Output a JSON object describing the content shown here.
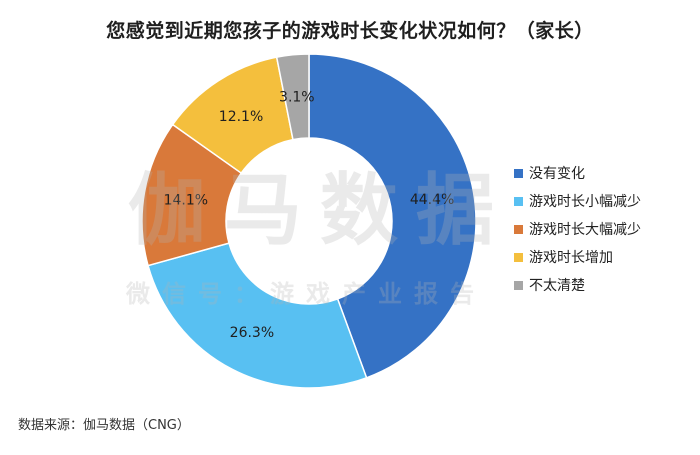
{
  "chart_data": {
    "type": "pie",
    "title": "您感觉到近期您孩子的游戏时长变化状况如何？（家长）",
    "categories": [
      "没有变化",
      "游戏时长小幅减少",
      "游戏时长大幅减少",
      "游戏时长增加",
      "不太清楚"
    ],
    "values": [
      44.4,
      26.3,
      14.1,
      12.1,
      3.1
    ],
    "data_labels": [
      "44.4%",
      "26.3%",
      "14.1%",
      "12.1%",
      "3.1%"
    ],
    "colors": [
      "#3572c5",
      "#58c0f2",
      "#d9793a",
      "#f4bf3d",
      "#a6a6a6"
    ],
    "donut": true,
    "legend_position": "right"
  },
  "watermark": {
    "main": "伽马数据",
    "sub": "微信号：游戏产业报告"
  },
  "source": "数据来源：伽马数据（CNG）"
}
